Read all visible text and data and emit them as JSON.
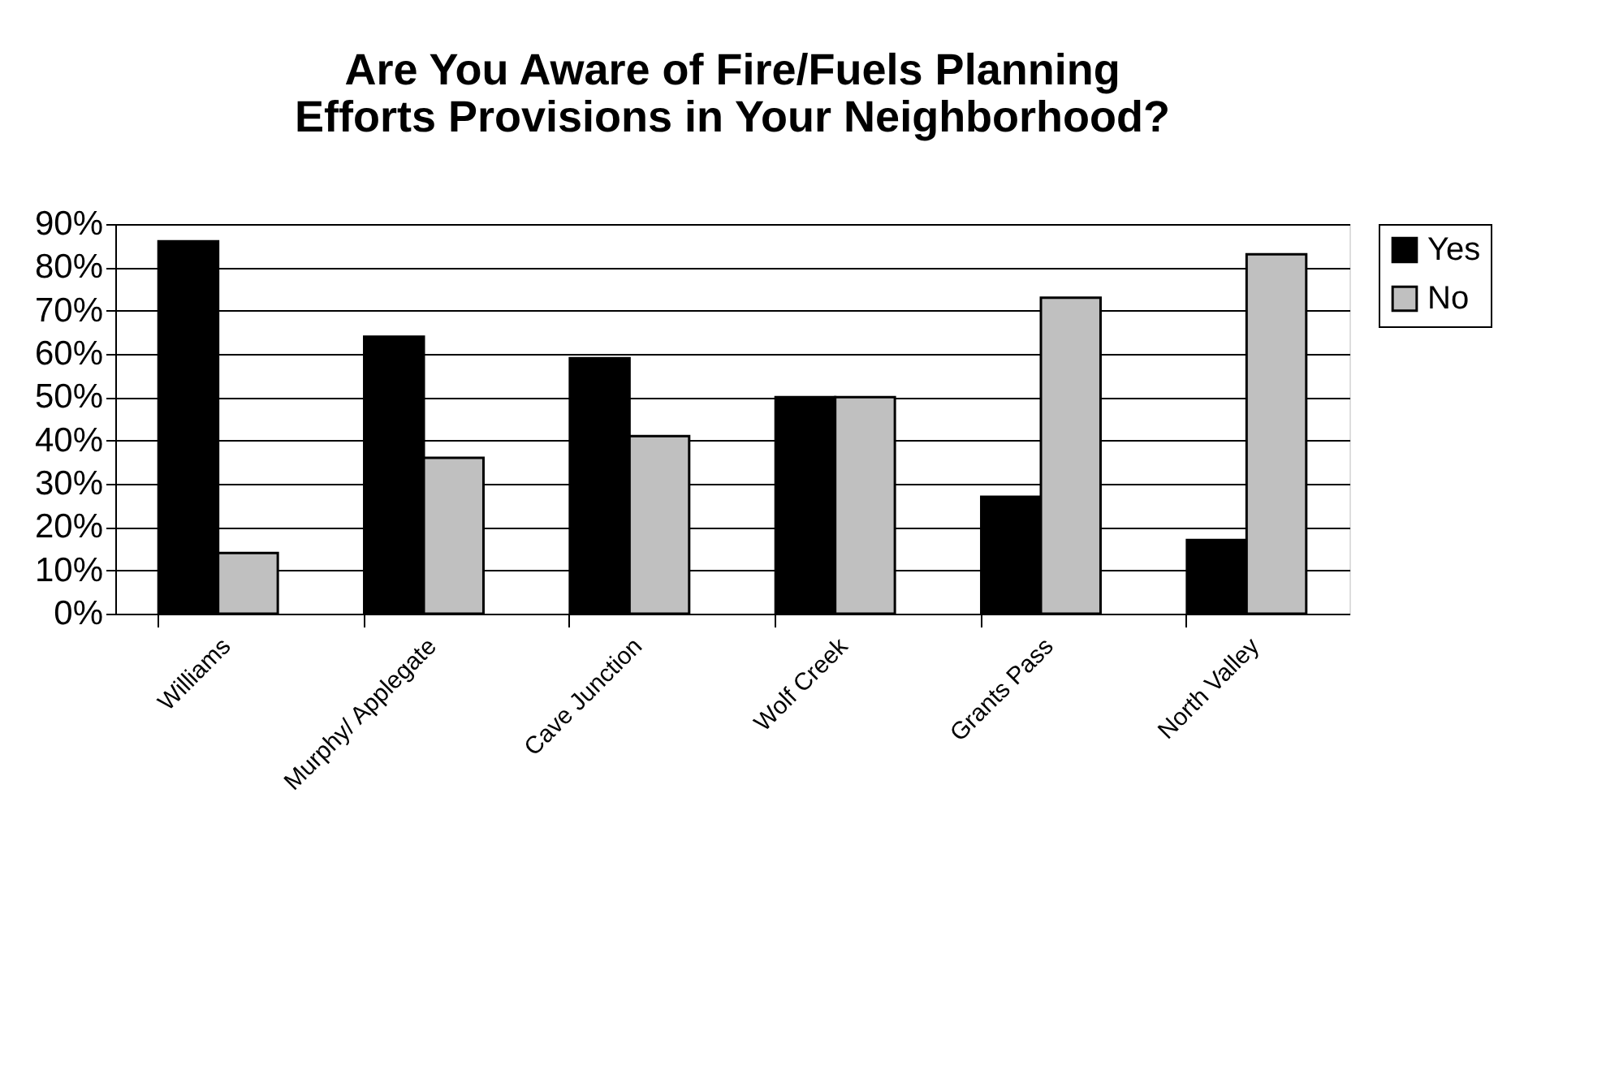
{
  "chart_data": {
    "type": "bar",
    "title": [
      "Are You Aware of Fire/Fuels Planning",
      "Efforts Provisions in Your Neighborhood?"
    ],
    "categories": [
      "Williams",
      "Murphy/ Applegate",
      "Cave Junction",
      "Wolf Creek",
      "Grants Pass",
      "North Valley"
    ],
    "series": [
      {
        "name": "Yes",
        "color": "#000000",
        "values": [
          86,
          64,
          59,
          50,
          27,
          17
        ]
      },
      {
        "name": "No",
        "color": "#c0c0c0",
        "values": [
          14,
          36,
          41,
          50,
          73,
          83
        ]
      }
    ],
    "ylim": [
      0,
      90
    ],
    "yticks": [
      {
        "value": 0,
        "label": "0%"
      },
      {
        "value": 10,
        "label": "10%"
      },
      {
        "value": 20,
        "label": "20%"
      },
      {
        "value": 30,
        "label": "30%"
      },
      {
        "value": 40,
        "label": "40%"
      },
      {
        "value": 50,
        "label": "50%"
      },
      {
        "value": 60,
        "label": "60%"
      },
      {
        "value": 70,
        "label": "70%"
      },
      {
        "value": 80,
        "label": "80%"
      },
      {
        "value": 90,
        "label": "90%"
      }
    ],
    "grid": "y",
    "legend": "right"
  }
}
